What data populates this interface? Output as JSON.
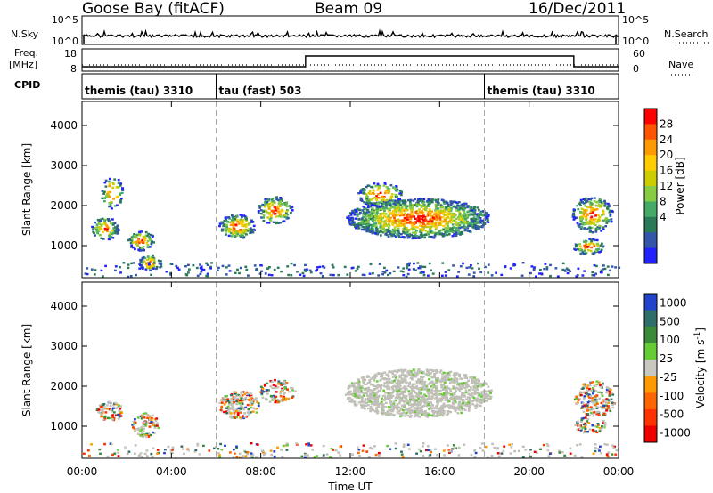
{
  "header": {
    "station": "Goose Bay (fitACF)",
    "beam": "Beam 09",
    "date": "16/Dec/2011"
  },
  "sky_panel": {
    "left_label": "N.Sky",
    "right_label": "N.Search",
    "tick_top": "10^5",
    "tick_bottom": "10^0"
  },
  "freq_panel": {
    "left_label_1": "Freq.",
    "left_label_2": "[MHz]",
    "right_label": "Nave",
    "left_tick_top": "18",
    "left_tick_bottom": "8",
    "right_tick_top": "60",
    "right_tick_bottom": "0"
  },
  "cpid_panel": {
    "label": "CPID",
    "segments": [
      {
        "text": "themis (tau) 3310",
        "start_hour": 0
      },
      {
        "text": "tau (fast) 503",
        "start_hour": 6
      },
      {
        "text": "themis (tau) 3310",
        "start_hour": 18
      }
    ]
  },
  "chart_data": [
    {
      "type": "heatmap",
      "name": "power",
      "ylabel": "Slant Range [km]",
      "xlabel": "Time UT",
      "xlim": [
        0,
        24
      ],
      "ylim": [
        200,
        4600
      ],
      "y_ticks": [
        1000,
        2000,
        3000,
        4000
      ],
      "x_ticks": [
        "00:00",
        "04:00",
        "08:00",
        "12:00",
        "16:00",
        "20:00",
        "00:00"
      ],
      "colorbar": {
        "label": "Power [dB]",
        "ticks": [
          "28",
          "24",
          "20",
          "16",
          "12",
          "8",
          "4"
        ],
        "colors": [
          "#ff0000",
          "#ff5500",
          "#ff9900",
          "#ffcc00",
          "#cccc00",
          "#88cc44",
          "#44aa66",
          "#2a7a5a",
          "#3355aa",
          "#2222ff"
        ]
      }
    },
    {
      "type": "heatmap",
      "name": "velocity",
      "ylabel": "Slant Range [km]",
      "xlabel": "Time UT",
      "xlim": [
        0,
        24
      ],
      "ylim": [
        200,
        4600
      ],
      "y_ticks": [
        1000,
        2000,
        3000,
        4000
      ],
      "x_ticks": [
        "00:00",
        "04:00",
        "08:00",
        "12:00",
        "16:00",
        "20:00",
        "00:00"
      ],
      "colorbar": {
        "label": "Velocity [m s",
        "label_superscript": "-1",
        "label_close": "]",
        "ticks": [
          "1000",
          "500",
          "100",
          "25",
          "-25",
          "-100",
          "-500",
          "-1000"
        ],
        "colors": [
          "#2244cc",
          "#2f6f6a",
          "#3a8a3a",
          "#66cc33",
          "#c8c8c0",
          "#ff9900",
          "#ff6600",
          "#ff3300",
          "#ee0000"
        ]
      }
    }
  ],
  "colors": {
    "ground_scatter": "#c0c0b8",
    "frame": "#000000",
    "dash": "#aaaaaa"
  }
}
